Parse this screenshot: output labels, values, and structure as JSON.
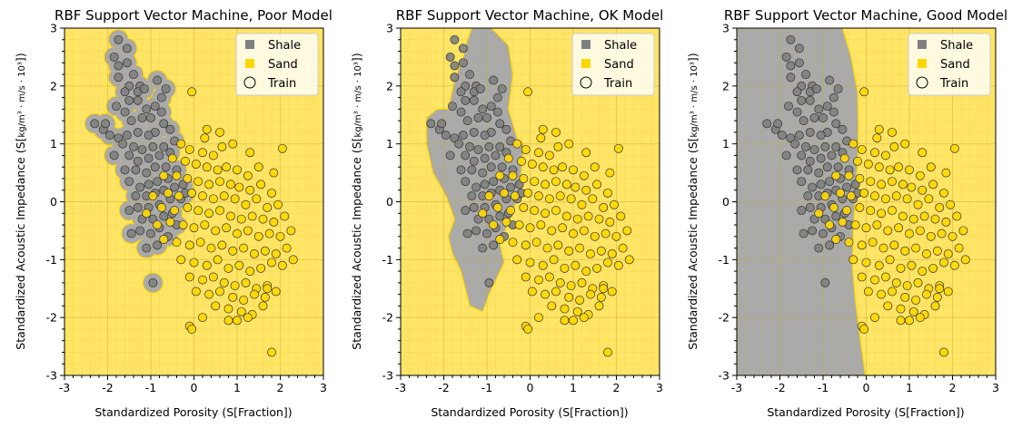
{
  "colors": {
    "shale": "#808080",
    "sand": "#ffd700",
    "shale_region": "#aaaaaa",
    "sand_region": "#ffe566",
    "grid": "#c8a832",
    "edge": "#333333"
  },
  "legend": {
    "entries": [
      {
        "label": "Shale",
        "marker": "square",
        "color": "#808080"
      },
      {
        "label": "Sand",
        "marker": "square",
        "color": "#ffd700"
      },
      {
        "label": "Train",
        "marker": "hollow-circle",
        "color": "#000000"
      }
    ]
  },
  "chart_data": [
    {
      "type": "scatter",
      "title": "RBF Support Vector Machine, Poor Model",
      "xlabel": "Standardized Porosity (S[Fraction])",
      "ylabel": "Standardized Acoustic Impedance (S[kg/m³ · m/s · 10³])",
      "xlim": [
        -3,
        3
      ],
      "ylim": [
        -3,
        3
      ],
      "xticks": [
        "-3",
        "-2",
        "-1",
        "0",
        "1",
        "2",
        "3"
      ],
      "yticks": [
        "-3",
        "-2",
        "-1",
        "0",
        "1",
        "2",
        "3"
      ],
      "grid": true,
      "legend_loc": "top-right",
      "decision_boundary": "shale islands tightly around each shale training point (overfit)"
    },
    {
      "type": "scatter",
      "title": "RBF Support Vector Machine, OK Model",
      "xlabel": "Standardized Porosity (S[Fraction])",
      "ylabel": "Standardized Acoustic Impedance (S[kg/m³ · m/s · 10³])",
      "xlim": [
        -3,
        3
      ],
      "ylim": [
        -3,
        3
      ],
      "xticks": [
        "-3",
        "-2",
        "-1",
        "0",
        "1",
        "2",
        "3"
      ],
      "yticks": [
        "-3",
        "-2",
        "-1",
        "0",
        "1",
        "2",
        "3"
      ],
      "grid": true,
      "legend_loc": "top-right",
      "decision_boundary": "smooth shale blob covering upper-left cluster",
      "shale_region": [
        [
          -1.35,
          3.0
        ],
        [
          -0.9,
          3.0
        ],
        [
          -0.5,
          2.7
        ],
        [
          -0.4,
          2.2
        ],
        [
          -0.5,
          1.6
        ],
        [
          -0.3,
          1.1
        ],
        [
          -0.15,
          1.0
        ],
        [
          -0.2,
          0.55
        ],
        [
          -0.25,
          0.2
        ],
        [
          -0.45,
          -0.3
        ],
        [
          -0.7,
          -0.7
        ],
        [
          -0.6,
          -1.05
        ],
        [
          -0.95,
          -1.6
        ],
        [
          -1.1,
          -1.9
        ],
        [
          -1.4,
          -1.8
        ],
        [
          -1.6,
          -1.2
        ],
        [
          -1.8,
          -0.9
        ],
        [
          -1.9,
          -0.6
        ],
        [
          -1.75,
          -0.3
        ],
        [
          -1.95,
          0.1
        ],
        [
          -2.25,
          0.5
        ],
        [
          -2.4,
          1.0
        ],
        [
          -2.4,
          1.45
        ],
        [
          -2.15,
          1.6
        ],
        [
          -1.9,
          1.6
        ],
        [
          -1.75,
          2.1
        ],
        [
          -1.55,
          2.5
        ],
        [
          -1.45,
          2.8
        ]
      ]
    },
    {
      "type": "scatter",
      "title": "RBF Support Vector Machine, Good Model",
      "xlabel": "Standardized Porosity (S[Fraction])",
      "ylabel": "Standardized Acoustic Impedance (S[kg/m³ · m/s · 10³])",
      "xlim": [
        -3,
        3
      ],
      "ylim": [
        -3,
        3
      ],
      "xticks": [
        "-3",
        "-2",
        "-1",
        "0",
        "1",
        "2",
        "3"
      ],
      "yticks": [
        "-3",
        "-2",
        "-1",
        "0",
        "1",
        "2",
        "3"
      ],
      "grid": true,
      "legend_loc": "top-right",
      "decision_boundary": "smooth near-vertical curve, shale to the left",
      "shale_region": [
        [
          -3,
          3
        ],
        [
          -0.55,
          3
        ],
        [
          -0.35,
          2.5
        ],
        [
          -0.2,
          1.9
        ],
        [
          -0.18,
          1.3
        ],
        [
          -0.2,
          0.7
        ],
        [
          -0.25,
          0.1
        ],
        [
          -0.3,
          -0.5
        ],
        [
          -0.32,
          -1.1
        ],
        [
          -0.25,
          -1.7
        ],
        [
          -0.15,
          -2.3
        ],
        [
          -0.02,
          -3
        ],
        [
          -3,
          -3
        ]
      ]
    }
  ],
  "shale_points": [
    [
      -1.75,
      2.8
    ],
    [
      -1.55,
      2.65
    ],
    [
      -1.85,
      2.5
    ],
    [
      -1.55,
      2.4
    ],
    [
      -1.75,
      2.35
    ],
    [
      -1.4,
      2.2
    ],
    [
      -1.75,
      2.15
    ],
    [
      -1.5,
      2.0
    ],
    [
      -1.6,
      1.9
    ],
    [
      -1.25,
      2.0
    ],
    [
      -1.3,
      1.9
    ],
    [
      -1.15,
      1.95
    ],
    [
      -0.85,
      2.1
    ],
    [
      -0.65,
      1.95
    ],
    [
      -0.75,
      1.8
    ],
    [
      -0.9,
      1.65
    ],
    [
      -1.1,
      1.6
    ],
    [
      -1.3,
      1.75
    ],
    [
      -1.5,
      1.75
    ],
    [
      -1.8,
      1.65
    ],
    [
      -1.6,
      1.55
    ],
    [
      -1.45,
      1.4
    ],
    [
      -1.2,
      1.45
    ],
    [
      -1.0,
      1.45
    ],
    [
      -0.75,
      1.55
    ],
    [
      -0.7,
      1.35
    ],
    [
      -0.55,
      1.25
    ],
    [
      -0.9,
      1.2
    ],
    [
      -1.05,
      1.15
    ],
    [
      -1.3,
      1.2
    ],
    [
      -1.55,
      1.15
    ],
    [
      -1.75,
      1.1
    ],
    [
      -1.95,
      1.15
    ],
    [
      -2.1,
      1.25
    ],
    [
      -2.3,
      1.35
    ],
    [
      -2.05,
      1.35
    ],
    [
      -1.65,
      1.0
    ],
    [
      -1.4,
      0.95
    ],
    [
      -1.2,
      0.9
    ],
    [
      -0.95,
      0.95
    ],
    [
      -0.7,
      0.95
    ],
    [
      -0.45,
      1.05
    ],
    [
      -0.55,
      0.85
    ],
    [
      -0.8,
      0.8
    ],
    [
      -1.05,
      0.75
    ],
    [
      -1.3,
      0.7
    ],
    [
      -1.5,
      0.8
    ],
    [
      -1.85,
      0.8
    ],
    [
      -1.6,
      0.55
    ],
    [
      -1.35,
      0.55
    ],
    [
      -1.1,
      0.5
    ],
    [
      -0.9,
      0.6
    ],
    [
      -0.65,
      0.6
    ],
    [
      -0.4,
      0.55
    ],
    [
      -0.6,
      0.4
    ],
    [
      -0.85,
      0.35
    ],
    [
      -1.05,
      0.3
    ],
    [
      -1.25,
      0.25
    ],
    [
      -1.5,
      0.35
    ],
    [
      -1.35,
      0.1
    ],
    [
      -1.1,
      0.1
    ],
    [
      -0.9,
      0.15
    ],
    [
      -0.7,
      0.2
    ],
    [
      -0.45,
      0.25
    ],
    [
      -0.25,
      0.3
    ],
    [
      -0.55,
      0.05
    ],
    [
      -0.3,
      0.05
    ],
    [
      -0.8,
      -0.05
    ],
    [
      -1.05,
      -0.1
    ],
    [
      -1.3,
      -0.1
    ],
    [
      -1.5,
      -0.15
    ],
    [
      -1.2,
      -0.3
    ],
    [
      -0.95,
      -0.3
    ],
    [
      -0.7,
      -0.25
    ],
    [
      -0.5,
      -0.2
    ],
    [
      -0.8,
      -0.45
    ],
    [
      -1.0,
      -0.55
    ],
    [
      -1.25,
      -0.5
    ],
    [
      -1.45,
      -0.55
    ],
    [
      -0.6,
      -0.6
    ],
    [
      -0.85,
      -0.75
    ],
    [
      -1.1,
      -0.8
    ],
    [
      -0.95,
      -1.4
    ],
    [
      -0.4,
      -0.4
    ],
    [
      -0.2,
      0.15
    ]
  ],
  "sand_points": [
    [
      -0.05,
      1.9
    ],
    [
      0.25,
      1.1
    ],
    [
      0.6,
      1.2
    ],
    [
      -0.3,
      1.0
    ],
    [
      -0.1,
      0.9
    ],
    [
      0.2,
      0.85
    ],
    [
      0.45,
      0.8
    ],
    [
      0.65,
      0.95
    ],
    [
      0.9,
      1.0
    ],
    [
      1.3,
      0.85
    ],
    [
      2.05,
      0.92
    ],
    [
      -0.5,
      0.75
    ],
    [
      -0.2,
      0.7
    ],
    [
      0.05,
      0.65
    ],
    [
      0.3,
      0.6
    ],
    [
      0.55,
      0.55
    ],
    [
      0.75,
      0.6
    ],
    [
      1.0,
      0.55
    ],
    [
      1.25,
      0.45
    ],
    [
      1.5,
      0.6
    ],
    [
      1.85,
      0.5
    ],
    [
      -0.7,
      0.45
    ],
    [
      -0.4,
      0.45
    ],
    [
      -0.15,
      0.4
    ],
    [
      0.1,
      0.35
    ],
    [
      0.35,
      0.3
    ],
    [
      0.6,
      0.35
    ],
    [
      0.85,
      0.3
    ],
    [
      1.05,
      0.25
    ],
    [
      1.3,
      0.2
    ],
    [
      1.55,
      0.3
    ],
    [
      1.8,
      0.15
    ],
    [
      -0.95,
      0.1
    ],
    [
      -0.6,
      0.15
    ],
    [
      -0.35,
      0.1
    ],
    [
      -0.05,
      0.15
    ],
    [
      0.2,
      0.1
    ],
    [
      0.45,
      0.05
    ],
    [
      0.7,
      0.1
    ],
    [
      0.95,
      0.05
    ],
    [
      1.2,
      -0.05
    ],
    [
      1.45,
      0.05
    ],
    [
      1.7,
      -0.1
    ],
    [
      1.95,
      -0.05
    ],
    [
      -1.1,
      -0.2
    ],
    [
      -0.75,
      -0.1
    ],
    [
      -0.45,
      -0.15
    ],
    [
      -0.15,
      -0.1
    ],
    [
      0.1,
      -0.15
    ],
    [
      0.35,
      -0.2
    ],
    [
      0.6,
      -0.15
    ],
    [
      0.85,
      -0.25
    ],
    [
      1.1,
      -0.3
    ],
    [
      1.35,
      -0.25
    ],
    [
      1.6,
      -0.3
    ],
    [
      1.85,
      -0.35
    ],
    [
      2.1,
      -0.25
    ],
    [
      -0.85,
      -0.4
    ],
    [
      -0.55,
      -0.35
    ],
    [
      -0.25,
      -0.4
    ],
    [
      0.0,
      -0.45
    ],
    [
      0.25,
      -0.4
    ],
    [
      0.5,
      -0.5
    ],
    [
      0.75,
      -0.45
    ],
    [
      1.0,
      -0.55
    ],
    [
      1.25,
      -0.5
    ],
    [
      1.5,
      -0.6
    ],
    [
      1.75,
      -0.55
    ],
    [
      2.0,
      -0.6
    ],
    [
      2.25,
      -0.5
    ],
    [
      -0.7,
      -0.65
    ],
    [
      -0.4,
      -0.7
    ],
    [
      -0.1,
      -0.75
    ],
    [
      0.15,
      -0.7
    ],
    [
      0.4,
      -0.8
    ],
    [
      0.65,
      -0.75
    ],
    [
      0.9,
      -0.85
    ],
    [
      1.15,
      -0.8
    ],
    [
      1.4,
      -0.9
    ],
    [
      1.65,
      -0.85
    ],
    [
      1.9,
      -0.9
    ],
    [
      2.15,
      -0.8
    ],
    [
      -0.3,
      -1.0
    ],
    [
      0.0,
      -1.05
    ],
    [
      0.3,
      -1.1
    ],
    [
      0.55,
      -1.0
    ],
    [
      0.8,
      -1.15
    ],
    [
      1.05,
      -1.1
    ],
    [
      1.3,
      -1.2
    ],
    [
      1.55,
      -1.15
    ],
    [
      1.8,
      -1.05
    ],
    [
      2.05,
      -1.1
    ],
    [
      2.3,
      -1.0
    ],
    [
      -0.1,
      -1.3
    ],
    [
      0.2,
      -1.35
    ],
    [
      0.45,
      -1.3
    ],
    [
      0.7,
      -1.4
    ],
    [
      0.95,
      -1.45
    ],
    [
      1.2,
      -1.4
    ],
    [
      1.45,
      -1.5
    ],
    [
      1.7,
      -1.45
    ],
    [
      0.05,
      -1.55
    ],
    [
      0.35,
      -1.6
    ],
    [
      0.6,
      -1.55
    ],
    [
      0.9,
      -1.65
    ],
    [
      1.15,
      -1.7
    ],
    [
      1.4,
      -1.6
    ],
    [
      1.65,
      -1.65
    ],
    [
      1.9,
      -1.55
    ],
    [
      0.5,
      -1.8
    ],
    [
      0.8,
      -1.85
    ],
    [
      1.1,
      -1.9
    ],
    [
      1.35,
      -1.95
    ],
    [
      1.6,
      -1.8
    ],
    [
      0.2,
      -2.0
    ],
    [
      1.0,
      -2.05
    ],
    [
      1.25,
      -2.0
    ],
    [
      -0.1,
      -2.15
    ],
    [
      -0.05,
      -2.2
    ],
    [
      0.8,
      -2.05
    ],
    [
      1.8,
      -2.6
    ],
    [
      1.7,
      -1.5
    ],
    [
      0.3,
      1.25
    ]
  ]
}
